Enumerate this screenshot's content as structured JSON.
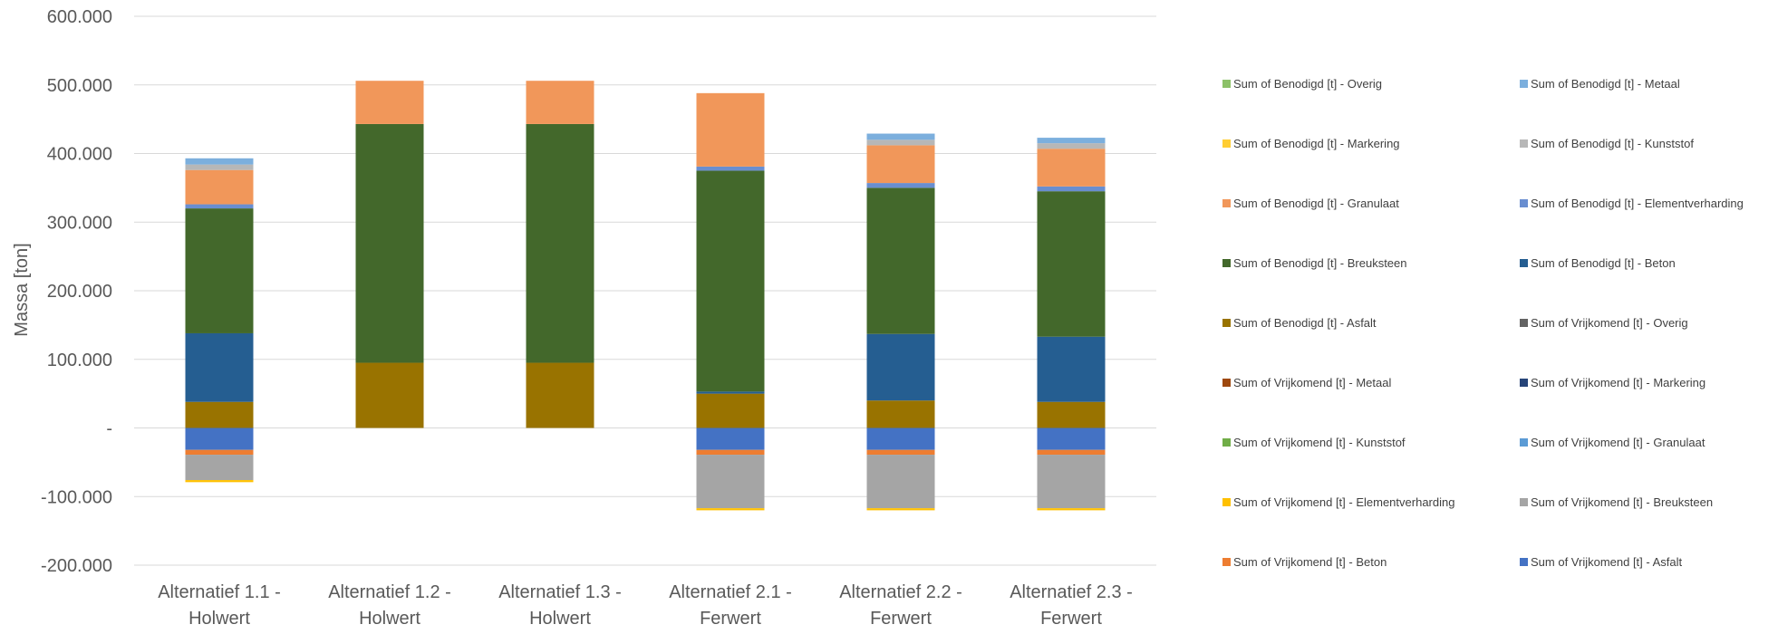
{
  "chart_data": {
    "type": "bar",
    "stacked": true,
    "ylabel": "Massa [ton]",
    "ylim": [
      -200000,
      600000
    ],
    "yticks": [
      -200000,
      -100000,
      0,
      100000,
      200000,
      300000,
      400000,
      500000,
      600000
    ],
    "ytick_labels": [
      "-200.000",
      "-100.000",
      "-",
      "100.000",
      "200.000",
      "300.000",
      "400.000",
      "500.000",
      "600.000"
    ],
    "grid": true,
    "legend_position": "right",
    "categories": [
      [
        "Alternatief 1.1 -",
        "Holwert"
      ],
      [
        "Alternatief 1.2 -",
        "Holwert"
      ],
      [
        "Alternatief 1.3 -",
        "Holwert"
      ],
      [
        "Alternatief 2.1 -",
        "Ferwert"
      ],
      [
        "Alternatief 2.2 -",
        "Ferwert"
      ],
      [
        "Alternatief 2.3 -",
        "Ferwert"
      ]
    ],
    "series": [
      {
        "name": "Sum of Vrijkomend [t] - Asfalt",
        "color": "#4472C4",
        "values": [
          -32000,
          0,
          0,
          -32000,
          -32000,
          -32000
        ]
      },
      {
        "name": "Sum of Vrijkomend [t] - Beton",
        "color": "#ED7D31",
        "values": [
          -7000,
          0,
          0,
          -7000,
          -7000,
          -7000
        ]
      },
      {
        "name": "Sum of Vrijkomend [t] - Breuksteen",
        "color": "#A5A5A5",
        "values": [
          -37000,
          0,
          0,
          -78000,
          -78000,
          -78000
        ]
      },
      {
        "name": "Sum of Vrijkomend [t] - Elementverharding",
        "color": "#FFC000",
        "values": [
          -3000,
          0,
          0,
          -3000,
          -3000,
          -3000
        ]
      },
      {
        "name": "Sum of Vrijkomend [t] - Granulaat",
        "color": "#5B9BD5",
        "values": [
          0,
          0,
          0,
          0,
          0,
          0
        ]
      },
      {
        "name": "Sum of Vrijkomend [t] - Kunststof",
        "color": "#70AD47",
        "values": [
          0,
          0,
          0,
          0,
          0,
          0
        ]
      },
      {
        "name": "Sum of Vrijkomend [t] - Markering",
        "color": "#264478",
        "values": [
          0,
          0,
          0,
          0,
          0,
          0
        ]
      },
      {
        "name": "Sum of Vrijkomend [t] - Metaal",
        "color": "#9E480E",
        "values": [
          0,
          0,
          0,
          0,
          0,
          0
        ]
      },
      {
        "name": "Sum of Vrijkomend [t] - Overig",
        "color": "#636363",
        "values": [
          0,
          0,
          0,
          0,
          0,
          0
        ]
      },
      {
        "name": "Sum of Benodigd [t] - Asfalt",
        "color": "#997300",
        "values": [
          38000,
          95000,
          95000,
          50000,
          40000,
          38000
        ]
      },
      {
        "name": "Sum of Benodigd [t] - Beton",
        "color": "#255E91",
        "values": [
          100000,
          0,
          0,
          3000,
          97000,
          95000
        ]
      },
      {
        "name": "Sum of Benodigd [t] - Breuksteen",
        "color": "#43682B",
        "values": [
          182000,
          348000,
          348000,
          322000,
          213000,
          212000
        ]
      },
      {
        "name": "Sum of Benodigd [t] - Elementverharding",
        "color": "#698ED0",
        "values": [
          6000,
          0,
          0,
          6000,
          7000,
          7000
        ]
      },
      {
        "name": "Sum of Benodigd [t] - Granulaat",
        "color": "#F1975A",
        "values": [
          50000,
          63000,
          63000,
          107000,
          55000,
          55000
        ]
      },
      {
        "name": "Sum of Benodigd [t] - Kunststof",
        "color": "#B7B7B7",
        "values": [
          8000,
          0,
          0,
          0,
          8000,
          8000
        ]
      },
      {
        "name": "Sum of Benodigd [t] - Markering",
        "color": "#FFCD33",
        "values": [
          0,
          0,
          0,
          0,
          0,
          0
        ]
      },
      {
        "name": "Sum of Benodigd [t] - Metaal",
        "color": "#7CAFDD",
        "values": [
          9000,
          0,
          0,
          0,
          9000,
          8000
        ]
      },
      {
        "name": "Sum of Benodigd [t] - Overig",
        "color": "#8CC168",
        "values": [
          0,
          0,
          0,
          0,
          0,
          0
        ]
      }
    ],
    "legend_order": [
      "Sum of Benodigd [t] - Overig",
      "Sum of Benodigd [t] - Metaal",
      "Sum of Benodigd [t] - Markering",
      "Sum of Benodigd [t] - Kunststof",
      "Sum of Benodigd [t] - Granulaat",
      "Sum of Benodigd [t] - Elementverharding",
      "Sum of Benodigd [t] - Breuksteen",
      "Sum of Benodigd [t] - Beton",
      "Sum of Benodigd [t] - Asfalt",
      "Sum of Vrijkomend [t] - Overig",
      "Sum of Vrijkomend [t] - Metaal",
      "Sum of Vrijkomend [t] - Markering",
      "Sum of Vrijkomend [t] - Kunststof",
      "Sum of Vrijkomend [t] - Granulaat",
      "Sum of Vrijkomend [t] - Elementverharding",
      "Sum of Vrijkomend [t] - Breuksteen",
      "Sum of Vrijkomend [t] - Beton",
      "Sum of Vrijkomend [t] - Asfalt"
    ]
  }
}
